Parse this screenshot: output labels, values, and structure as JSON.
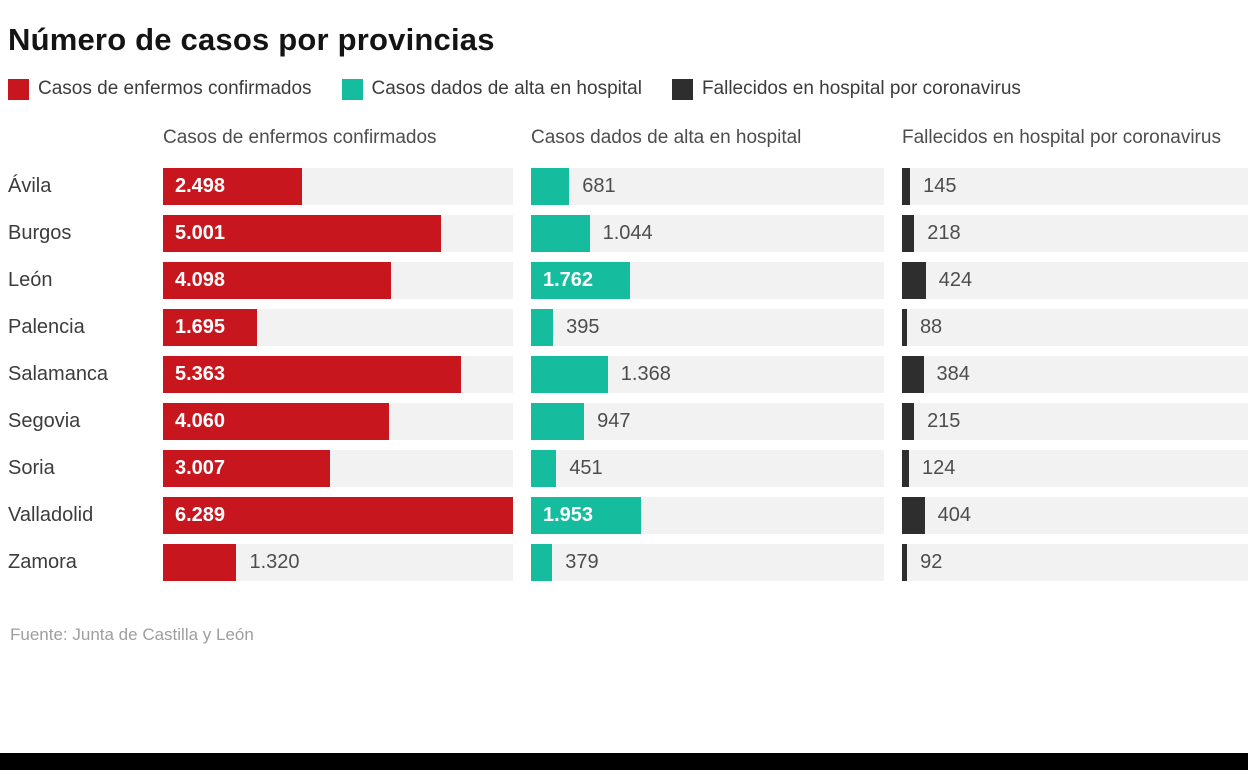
{
  "title": "Número de casos por provincias",
  "legend": [
    {
      "label": "Casos de enfermos confirmados",
      "color": "#c8161e"
    },
    {
      "label": "Casos dados de alta en hospital",
      "color": "#16bc9e"
    },
    {
      "label": "Fallecidos en hospital por coronavirus",
      "color": "#2e2e2e"
    }
  ],
  "source": "Fuente: Junta de Castilla y León",
  "chart_data": {
    "type": "bar",
    "orientation": "horizontal",
    "title": "Número de casos por provincias",
    "categories": [
      "Ávila",
      "Burgos",
      "León",
      "Palencia",
      "Salamanca",
      "Segovia",
      "Soria",
      "Valladolid",
      "Zamora"
    ],
    "series": [
      {
        "name": "Casos de enfermos confirmados",
        "color": "#c8161e",
        "values": [
          2498,
          5001,
          4098,
          1695,
          5363,
          4060,
          3007,
          6289,
          1320
        ]
      },
      {
        "name": "Casos dados de alta en hospital",
        "color": "#16bc9e",
        "values": [
          681,
          1044,
          1762,
          395,
          1368,
          947,
          451,
          1953,
          379
        ]
      },
      {
        "name": "Fallecidos en hospital por coronavirus",
        "color": "#2e2e2e",
        "values": [
          145,
          218,
          424,
          88,
          384,
          215,
          124,
          404,
          92
        ]
      }
    ],
    "column_headers": [
      "Casos de enfermos confirmados",
      "Casos dados de alta en hospital",
      "Fallecidos en hospital por coronavirus"
    ],
    "value_axis_max": 6289,
    "grid": false,
    "legend_position": "top",
    "number_format": "thousands-dot",
    "track_background": "#f2f2f2"
  }
}
